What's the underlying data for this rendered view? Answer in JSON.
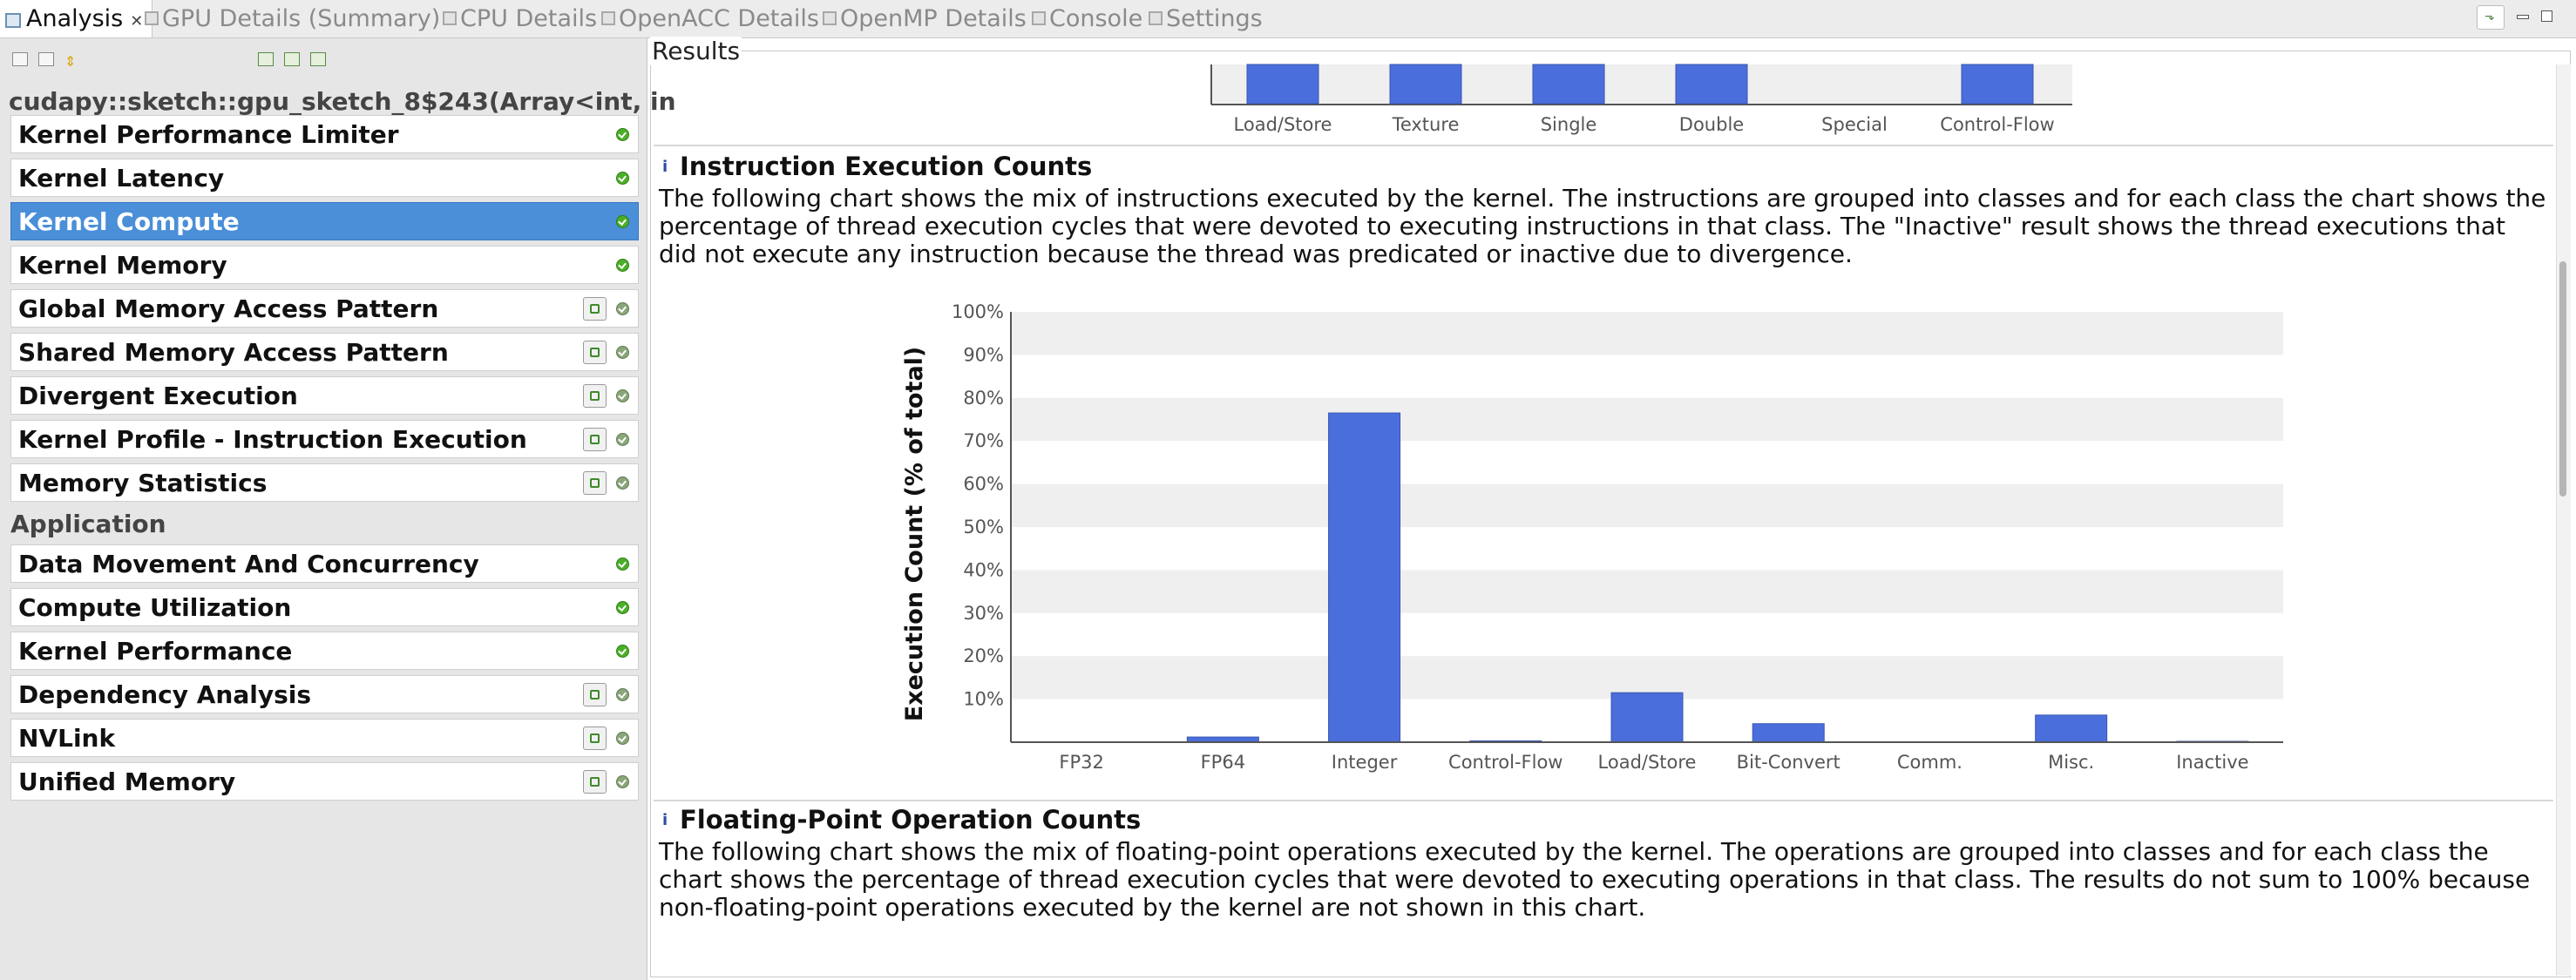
{
  "tabs": [
    {
      "label": "Analysis",
      "active": true
    },
    {
      "label": "GPU Details (Summary)"
    },
    {
      "label": "CPU Details"
    },
    {
      "label": "OpenACC Details"
    },
    {
      "label": "OpenMP Details"
    },
    {
      "label": "Console"
    },
    {
      "label": "Settings"
    }
  ],
  "sidebar": {
    "kernel_name": "cudapy::sketch::gpu_sketch_8$243(Array<int, in",
    "kernel_items": [
      {
        "label": "Kernel Performance Limiter",
        "runnable": false
      },
      {
        "label": "Kernel Latency",
        "runnable": false
      },
      {
        "label": "Kernel Compute",
        "runnable": false,
        "selected": true
      },
      {
        "label": "Kernel Memory",
        "runnable": false
      },
      {
        "label": "Global Memory Access Pattern",
        "runnable": true
      },
      {
        "label": "Shared Memory Access Pattern",
        "runnable": true
      },
      {
        "label": "Divergent Execution",
        "runnable": true
      },
      {
        "label": "Kernel Profile - Instruction Execution",
        "runnable": true
      },
      {
        "label": "Memory Statistics",
        "runnable": true
      }
    ],
    "app_section_label": "Application",
    "app_items": [
      {
        "label": "Data Movement And Concurrency",
        "runnable": false
      },
      {
        "label": "Compute Utilization",
        "runnable": false
      },
      {
        "label": "Kernel Performance",
        "runnable": false
      },
      {
        "label": "Dependency Analysis",
        "runnable": true
      },
      {
        "label": "NVLink",
        "runnable": true
      },
      {
        "label": "Unified Memory",
        "runnable": true
      }
    ]
  },
  "results": {
    "title": "Results",
    "top_chart_categories": [
      "Load/Store",
      "Texture",
      "Single",
      "Double",
      "Special",
      "Control-Flow"
    ],
    "instruction_panel": {
      "heading": "Instruction Execution Counts",
      "description": "The following chart shows the mix of instructions executed by the kernel. The instructions are grouped into classes and for each class the chart shows the percentage of thread execution cycles that were devoted to executing instructions in that class. The \"Inactive\" result shows the thread executions that did not execute any instruction because the thread was predicated or inactive due to divergence."
    },
    "fp_panel": {
      "heading": "Floating-Point Operation Counts",
      "description": "The following chart shows the mix of floating-point operations executed by the kernel. The operations are grouped into classes and for each class the chart shows the percentage of thread execution cycles that were devoted to executing operations in that class. The results do not sum to 100% because non-floating-point operations executed by the kernel are not shown in this chart."
    }
  },
  "chart_data": {
    "type": "bar",
    "title": "",
    "xlabel": "",
    "ylabel": "Execution Count (% of total)",
    "categories": [
      "FP32",
      "FP64",
      "Integer",
      "Control-Flow",
      "Load/Store",
      "Bit-Convert",
      "Comm.",
      "Misc.",
      "Inactive"
    ],
    "values": [
      0,
      1.2,
      76.5,
      0.3,
      11.5,
      4.3,
      0,
      6.3,
      0.2
    ],
    "ylim": [
      0,
      100
    ],
    "yticks": [
      "10%",
      "20%",
      "30%",
      "40%",
      "50%",
      "60%",
      "70%",
      "80%",
      "90%",
      "100%"
    ],
    "grid": "alternating bands",
    "bar_color": "#4a6fdc"
  }
}
